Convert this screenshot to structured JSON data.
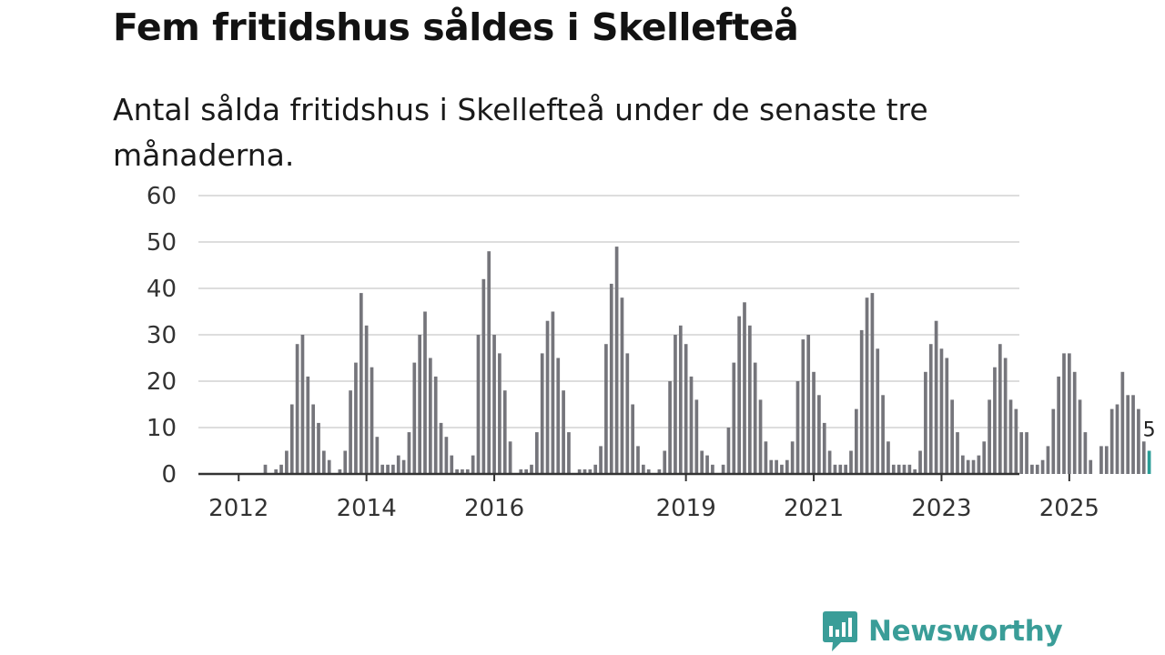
{
  "header": {
    "title": "Fem fritidshus såldes i Skellefteå",
    "subtitle": "Antal sålda fritidshus i Skellefteå under de senaste tre månaderna."
  },
  "brand": {
    "name": "Newsworthy"
  },
  "colors": {
    "bar": "#75757b",
    "highlight": "#2a9d96",
    "grid": "#dddddd",
    "axis": "#333333",
    "brand": "#3a9d98"
  },
  "chart_data": {
    "type": "bar",
    "title": "Fem fritidshus såldes i Skellefteå",
    "ylim": [
      0,
      60
    ],
    "yticks": [
      0,
      10,
      20,
      30,
      40,
      50,
      60
    ],
    "xtick_labels": [
      "2012",
      "2014",
      "2016",
      "2019",
      "2021",
      "2023",
      "2025"
    ],
    "grid": true,
    "start": "2012-01",
    "end": "2026-03",
    "series": [
      {
        "values": [
          0,
          0,
          0,
          0,
          0,
          0,
          0,
          0,
          0,
          0,
          2,
          0,
          1,
          2,
          5,
          15,
          28,
          30,
          21,
          15,
          11,
          5,
          3,
          0,
          1,
          5,
          18,
          24,
          39,
          32,
          23,
          8,
          2,
          2,
          2,
          4,
          3,
          9,
          24,
          30,
          35,
          25,
          21,
          11,
          8,
          4,
          1,
          1,
          1,
          4,
          30,
          42,
          48,
          30,
          26,
          18,
          7,
          0,
          1,
          1,
          2,
          9,
          26,
          33,
          35,
          25,
          18,
          9,
          0,
          1,
          1,
          1,
          2,
          6,
          28,
          41,
          49,
          38,
          26,
          15,
          6,
          2,
          1,
          0,
          1,
          5,
          20,
          30,
          32,
          28,
          21,
          16,
          5,
          4,
          2,
          0,
          2,
          10,
          24,
          34,
          37,
          32,
          24,
          16,
          7,
          3,
          3,
          2,
          3,
          7,
          20,
          29,
          30,
          22,
          17,
          11,
          5,
          2,
          2,
          2,
          5,
          14,
          31,
          38,
          39,
          27,
          17,
          7,
          2,
          2,
          2,
          2,
          1,
          5,
          22,
          28,
          33,
          27,
          25,
          16,
          9,
          4,
          3,
          3,
          4,
          7,
          16,
          23,
          28,
          25,
          16,
          14,
          9,
          9,
          2,
          2,
          3,
          6,
          14,
          21,
          26,
          26,
          22,
          16,
          9,
          3,
          0,
          6,
          6,
          14,
          15,
          22,
          17,
          17,
          14,
          7,
          5
        ]
      }
    ],
    "highlight_value": 5
  }
}
